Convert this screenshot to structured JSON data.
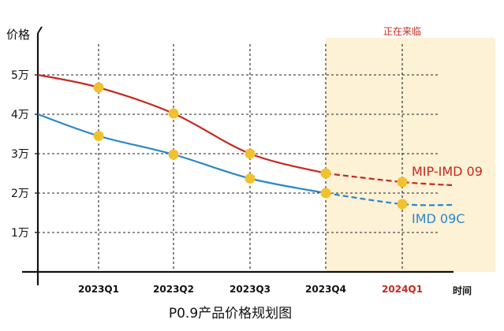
{
  "chart_data": {
    "type": "line",
    "title": "P0.9产品价格规划图",
    "ylabel": "价格",
    "xlabel": "时间",
    "categories": [
      "2023Q1",
      "2023Q2",
      "2023Q3",
      "2023Q4",
      "2024Q1"
    ],
    "x_highlight_category": "2024Q1",
    "y_ticks": [
      "1万",
      "2万",
      "3万",
      "4万",
      "5万"
    ],
    "y_tick_values": [
      1,
      2,
      3,
      4,
      5
    ],
    "ylim": [
      0,
      6
    ],
    "grid": "dashed",
    "shaded_region": {
      "from": "2023Q4",
      "label": "正在来临"
    },
    "series": [
      {
        "name": "MIP-IMD 09",
        "color": "#c8281e",
        "start_value": 5.0,
        "values": [
          4.68,
          4.02,
          3.0,
          2.5,
          2.28
        ],
        "end_value": 2.2,
        "dashed_from": "2023Q4"
      },
      {
        "name": "IMD 09C",
        "color": "#2b87c8",
        "start_value": 4.0,
        "values": [
          3.45,
          2.98,
          2.37,
          2.0,
          1.72
        ],
        "end_value": 1.7,
        "dashed_from": "2023Q4"
      }
    ],
    "marker_color": "#f2c12e",
    "shade_color": "#fdf1d6",
    "highlight_color": "#c8281e"
  }
}
